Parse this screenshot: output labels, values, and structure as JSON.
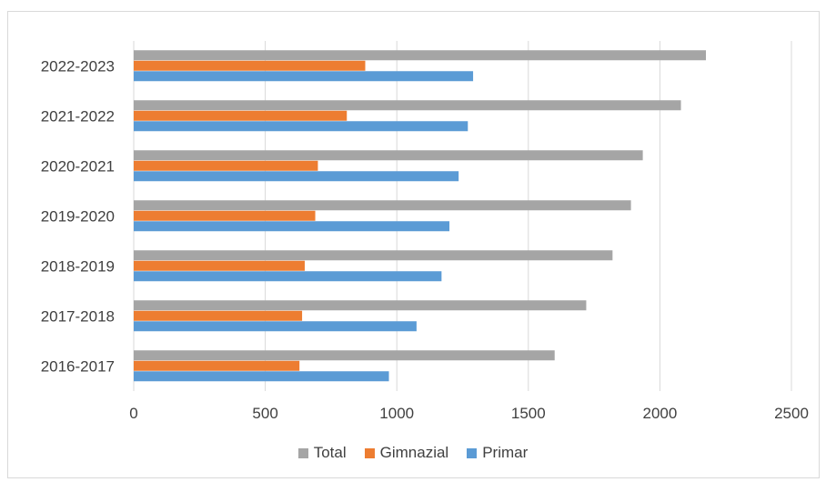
{
  "chart_data": {
    "type": "bar",
    "orientation": "horizontal",
    "categories": [
      "2016-2017",
      "2017-2018",
      "2018-2019",
      "2019-2020",
      "2020-2021",
      "2021-2022",
      "2022-2023"
    ],
    "series": [
      {
        "name": "Total",
        "color": "#a5a5a5",
        "values": [
          1600,
          1720,
          1820,
          1890,
          1935,
          2080,
          2175
        ]
      },
      {
        "name": "Gimnazial",
        "color": "#ed7d31",
        "values": [
          630,
          640,
          650,
          690,
          700,
          810,
          880
        ]
      },
      {
        "name": "Primar",
        "color": "#5b9bd5",
        "values": [
          970,
          1075,
          1170,
          1200,
          1235,
          1270,
          1290
        ]
      }
    ],
    "xlim": [
      0,
      2500
    ],
    "x_ticks": [
      "0",
      "500",
      "1000",
      "1500",
      "2000",
      "2500"
    ],
    "grid": true,
    "legend_position": "bottom",
    "legend": [
      {
        "label": "Total",
        "color": "#a5a5a5"
      },
      {
        "label": "Gimnazial",
        "color": "#ed7d31"
      },
      {
        "label": "Primar",
        "color": "#5b9bd5"
      }
    ],
    "title": "",
    "xlabel": "",
    "ylabel": ""
  }
}
